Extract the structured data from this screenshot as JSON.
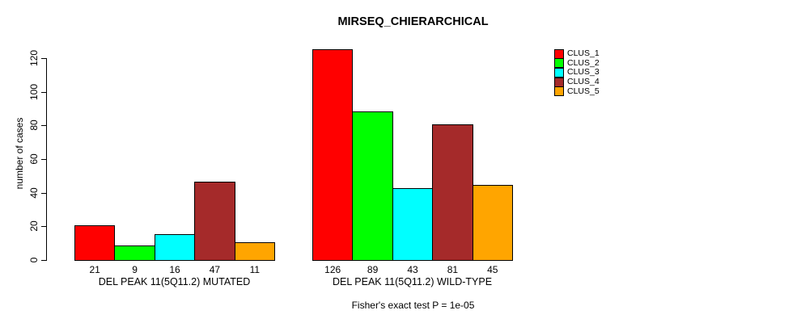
{
  "chart_data": {
    "type": "bar",
    "title": "MIRSEQ_CHIERARCHICAL",
    "ylabel": "number of cases",
    "xlabel": "",
    "ylim": [
      0,
      120
    ],
    "yticks": [
      0,
      20,
      40,
      60,
      80,
      100,
      120
    ],
    "grid": false,
    "legend_position": "right",
    "bar_outline_color": "#000000",
    "categories": [
      "DEL PEAK 11(5Q11.2) MUTATED",
      "DEL PEAK 11(5Q11.2) WILD-TYPE"
    ],
    "series": [
      {
        "name": "CLUS_1",
        "color": "#FF0000",
        "values": [
          21,
          126
        ]
      },
      {
        "name": "CLUS_2",
        "color": "#00FF00",
        "values": [
          9,
          89
        ]
      },
      {
        "name": "CLUS_3",
        "color": "#00FFFF",
        "values": [
          16,
          43
        ]
      },
      {
        "name": "CLUS_4",
        "color": "#A52A2A",
        "values": [
          47,
          81
        ]
      },
      {
        "name": "CLUS_5",
        "color": "#FFA500",
        "values": [
          11,
          45
        ]
      }
    ],
    "bar_value_labels": {
      "DEL PEAK 11(5Q11.2) MUTATED": [
        21,
        9,
        16,
        47,
        11
      ],
      "DEL PEAK 11(5Q11.2) WILD-TYPE": [
        126,
        89,
        43,
        81,
        45
      ]
    },
    "annotation": "Fisher's exact test P = 1e-05"
  }
}
